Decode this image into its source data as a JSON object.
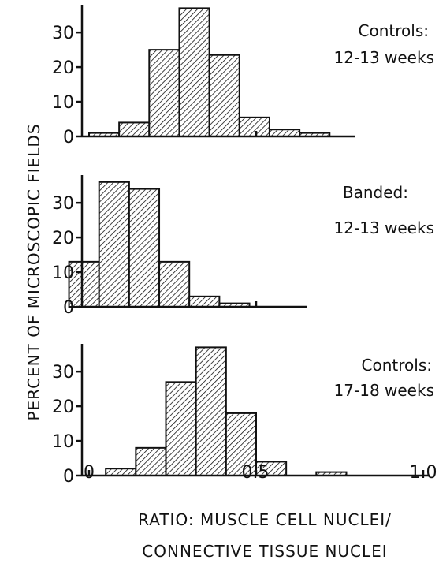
{
  "chart_data": {
    "type": "bar",
    "ylabel": "PERCENT OF MICROSCOPIC FIELDS",
    "xlabel_line1": "RATIO: MUSCLE CELL NUCLEI/",
    "xlabel_line2": "CONNECTIVE TISSUE NUCLEI",
    "xticks": [
      "0",
      "0.5",
      "1.0"
    ],
    "xlim": [
      0,
      1.0
    ],
    "yticks": [
      "0",
      "10",
      "20",
      "30"
    ],
    "ylim": [
      0,
      38
    ],
    "bin_width": 0.09,
    "panels": [
      {
        "label_line1": "Controls:",
        "label_line2": "12-13 weeks",
        "bins": [
          {
            "x0": 0.0,
            "x1": 0.09,
            "value": 1
          },
          {
            "x0": 0.09,
            "x1": 0.18,
            "value": 4
          },
          {
            "x0": 0.18,
            "x1": 0.27,
            "value": 25
          },
          {
            "x0": 0.27,
            "x1": 0.36,
            "value": 37
          },
          {
            "x0": 0.36,
            "x1": 0.45,
            "value": 23.5
          },
          {
            "x0": 0.45,
            "x1": 0.54,
            "value": 5.5
          },
          {
            "x0": 0.54,
            "x1": 0.63,
            "value": 2
          },
          {
            "x0": 0.63,
            "x1": 0.72,
            "value": 1
          }
        ]
      },
      {
        "label_line1": "Banded:",
        "label_line2": "12-13 weeks",
        "bins": [
          {
            "x0": -0.06,
            "x1": 0.03,
            "value": 13
          },
          {
            "x0": 0.03,
            "x1": 0.12,
            "value": 36
          },
          {
            "x0": 0.12,
            "x1": 0.21,
            "value": 34
          },
          {
            "x0": 0.21,
            "x1": 0.3,
            "value": 13
          },
          {
            "x0": 0.3,
            "x1": 0.39,
            "value": 3
          },
          {
            "x0": 0.39,
            "x1": 0.48,
            "value": 1
          }
        ]
      },
      {
        "label_line1": "Controls:",
        "label_line2": "17-18 weeks",
        "bins": [
          {
            "x0": 0.05,
            "x1": 0.14,
            "value": 2
          },
          {
            "x0": 0.14,
            "x1": 0.23,
            "value": 8
          },
          {
            "x0": 0.23,
            "x1": 0.32,
            "value": 27
          },
          {
            "x0": 0.32,
            "x1": 0.41,
            "value": 37
          },
          {
            "x0": 0.41,
            "x1": 0.5,
            "value": 18
          },
          {
            "x0": 0.5,
            "x1": 0.59,
            "value": 4
          },
          {
            "x0": 0.59,
            "x1": 0.68,
            "value": 0
          },
          {
            "x0": 0.68,
            "x1": 0.77,
            "value": 1
          }
        ]
      }
    ]
  }
}
